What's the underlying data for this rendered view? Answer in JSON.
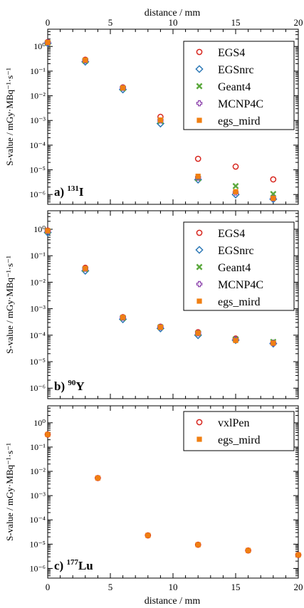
{
  "figure": {
    "top_axis_label": "distance / mm",
    "bottom_axis_label": "distance / mm"
  },
  "chart_data": [
    {
      "type": "scatter",
      "panel": "a",
      "panel_label_prefix": "a)",
      "panel_label_mass": "131",
      "panel_label_element": "I",
      "ylabel": "S-value / mGy·MBq⁻¹·s⁻¹",
      "yscale": "log",
      "xlim": [
        0,
        20
      ],
      "ylim": [
        4e-07,
        5
      ],
      "x_ticks": [
        0,
        5,
        10,
        15,
        20
      ],
      "y_ticks": [
        "10⁰",
        "10⁻¹",
        "10⁻²",
        "10⁻³",
        "10⁻⁴",
        "10⁻⁵",
        "10⁻⁶"
      ],
      "legend_position": "top-right",
      "series": [
        {
          "name": "EGS4",
          "color": "#d7261e",
          "marker": "circle-open",
          "x": [
            0,
            3,
            6,
            9,
            12,
            15,
            18
          ],
          "y": [
            1.5,
            0.29,
            0.022,
            0.0014,
            2.8e-05,
            1.35e-05,
            4.1e-06
          ]
        },
        {
          "name": "EGSnrc",
          "color": "#2c78b6",
          "marker": "diamond-open",
          "x": [
            0,
            3,
            6,
            9,
            12,
            15,
            18
          ],
          "y": [
            1.35,
            0.24,
            0.018,
            0.00075,
            4e-06,
            1e-06,
            6.5e-07
          ]
        },
        {
          "name": "Geant4",
          "color": "#5aa83c",
          "marker": "x",
          "x": [
            0,
            3,
            6,
            9,
            12,
            15,
            18
          ],
          "y": [
            1.4,
            0.26,
            0.02,
            0.00095,
            4.5e-06,
            2.2e-06,
            1.05e-06
          ]
        },
        {
          "name": "MCNP4C",
          "color": "#8e44ad",
          "marker": "plus-open",
          "x": [
            0,
            3,
            6,
            9,
            12,
            15,
            18
          ],
          "y": [
            1.42,
            0.27,
            0.021,
            0.001,
            4.8e-06,
            1.2e-06,
            7e-07
          ]
        },
        {
          "name": "egs_mird",
          "color": "#f07f12",
          "marker": "square",
          "x": [
            0,
            3,
            6,
            9,
            12,
            15,
            18
          ],
          "y": [
            1.45,
            0.28,
            0.021,
            0.00105,
            5.5e-06,
            1.3e-06,
            7e-07
          ]
        }
      ]
    },
    {
      "type": "scatter",
      "panel": "b",
      "panel_label_prefix": "b)",
      "panel_label_mass": "90",
      "panel_label_element": "Y",
      "ylabel": "S-value / mGy·MBq⁻¹·s⁻¹",
      "yscale": "log",
      "xlim": [
        0,
        20
      ],
      "ylim": [
        4e-07,
        5
      ],
      "x_ticks": [
        0,
        5,
        10,
        15,
        20
      ],
      "y_ticks": [
        "10⁰",
        "10⁻¹",
        "10⁻²",
        "10⁻³",
        "10⁻⁴",
        "10⁻⁵",
        "10⁻⁶"
      ],
      "legend_position": "top-right",
      "series": [
        {
          "name": "EGS4",
          "color": "#d7261e",
          "marker": "circle-open",
          "x": [
            0,
            3,
            6,
            9,
            12,
            15,
            18
          ],
          "y": [
            0.9,
            0.035,
            0.00048,
            0.00021,
            0.00013,
            7.5e-05,
            5.2e-05
          ]
        },
        {
          "name": "EGSnrc",
          "color": "#2c78b6",
          "marker": "diamond-open",
          "x": [
            0,
            3,
            6,
            9,
            12,
            15,
            18
          ],
          "y": [
            0.75,
            0.027,
            0.0004,
            0.00018,
            0.0001,
            6.5e-05,
            4.8e-05
          ]
        },
        {
          "name": "Geant4",
          "color": "#5aa83c",
          "marker": "x",
          "x": [
            0,
            3,
            6,
            9,
            12,
            15,
            18
          ],
          "y": [
            0.85,
            0.031,
            0.00045,
            0.0002,
            0.00012,
            7e-05,
            5.6e-05
          ]
        },
        {
          "name": "MCNP4C",
          "color": "#8e44ad",
          "marker": "plus-open",
          "x": [
            0,
            3,
            6,
            9,
            12,
            15,
            18
          ],
          "y": [
            0.86,
            0.032,
            0.00046,
            0.0002,
            0.000118,
            6.8e-05,
            5e-05
          ]
        },
        {
          "name": "egs_mird",
          "color": "#f07f12",
          "marker": "square",
          "x": [
            0,
            3,
            6,
            9,
            12,
            15,
            18
          ],
          "y": [
            0.88,
            0.033,
            0.00047,
            0.0002,
            0.00012,
            6.3e-05,
            5e-05
          ]
        }
      ]
    },
    {
      "type": "scatter",
      "panel": "c",
      "panel_label_prefix": "c)",
      "panel_label_mass": "177",
      "panel_label_element": "Lu",
      "ylabel": "S-value / mGy·MBq⁻¹·s⁻¹",
      "yscale": "log",
      "xlim": [
        0,
        20
      ],
      "ylim": [
        4e-07,
        5
      ],
      "x_ticks": [
        0,
        5,
        10,
        15,
        20
      ],
      "y_ticks": [
        "10⁰",
        "10⁻¹",
        "10⁻²",
        "10⁻³",
        "10⁻⁴",
        "10⁻⁵",
        "10⁻⁶"
      ],
      "legend_position": "top-right",
      "series": [
        {
          "name": "vxlPen",
          "color": "#d7261e",
          "marker": "circle-open",
          "x": [
            0,
            4,
            8,
            12,
            16,
            20
          ],
          "y": [
            0.33,
            0.0053,
            2.3e-05,
            9.5e-06,
            5.5e-06,
            3.6e-06
          ]
        },
        {
          "name": "egs_mird",
          "color": "#f07f12",
          "marker": "square",
          "x": [
            0,
            4,
            8,
            12,
            16,
            20
          ],
          "y": [
            0.33,
            0.0053,
            2.3e-05,
            9.5e-06,
            5.5e-06,
            3.6e-06
          ]
        }
      ]
    }
  ]
}
